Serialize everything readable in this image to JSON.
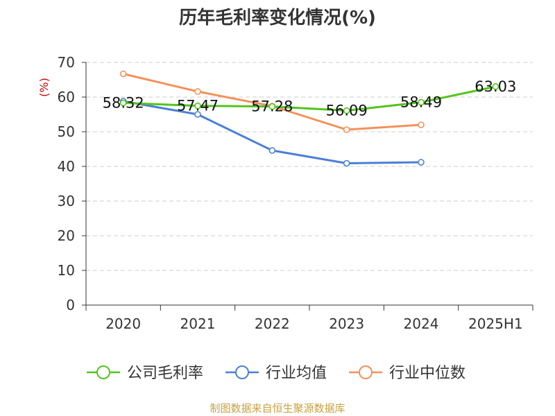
{
  "chart_data": {
    "type": "line",
    "title": "历年毛利率变化情况(%)",
    "ylabel": "(%)",
    "xlabel": "",
    "categories": [
      "2020",
      "2021",
      "2022",
      "2023",
      "2024",
      "2025H1"
    ],
    "ylim": [
      0,
      70
    ],
    "yticks": [
      "0",
      "10",
      "20",
      "30",
      "40",
      "50",
      "60",
      "70"
    ],
    "grid": true,
    "legend_position": "bottom",
    "series": [
      {
        "name": "公司毛利率",
        "color": "#52c41a",
        "values": [
          58.32,
          57.47,
          57.28,
          56.09,
          58.49,
          63.03
        ],
        "labels": [
          "58.32",
          "57.47",
          "57.28",
          "56.09",
          "58.49",
          "63.03"
        ]
      },
      {
        "name": "行业均值",
        "color": "#4a7fd6",
        "values": [
          58.8,
          55.0,
          44.6,
          40.9,
          41.2,
          null
        ],
        "labels": []
      },
      {
        "name": "行业中位数",
        "color": "#f5905a",
        "values": [
          66.7,
          61.6,
          57.4,
          50.6,
          52.0,
          null
        ],
        "labels": []
      }
    ]
  },
  "footer": {
    "source": "制图数据来自恒生聚源数据库"
  }
}
